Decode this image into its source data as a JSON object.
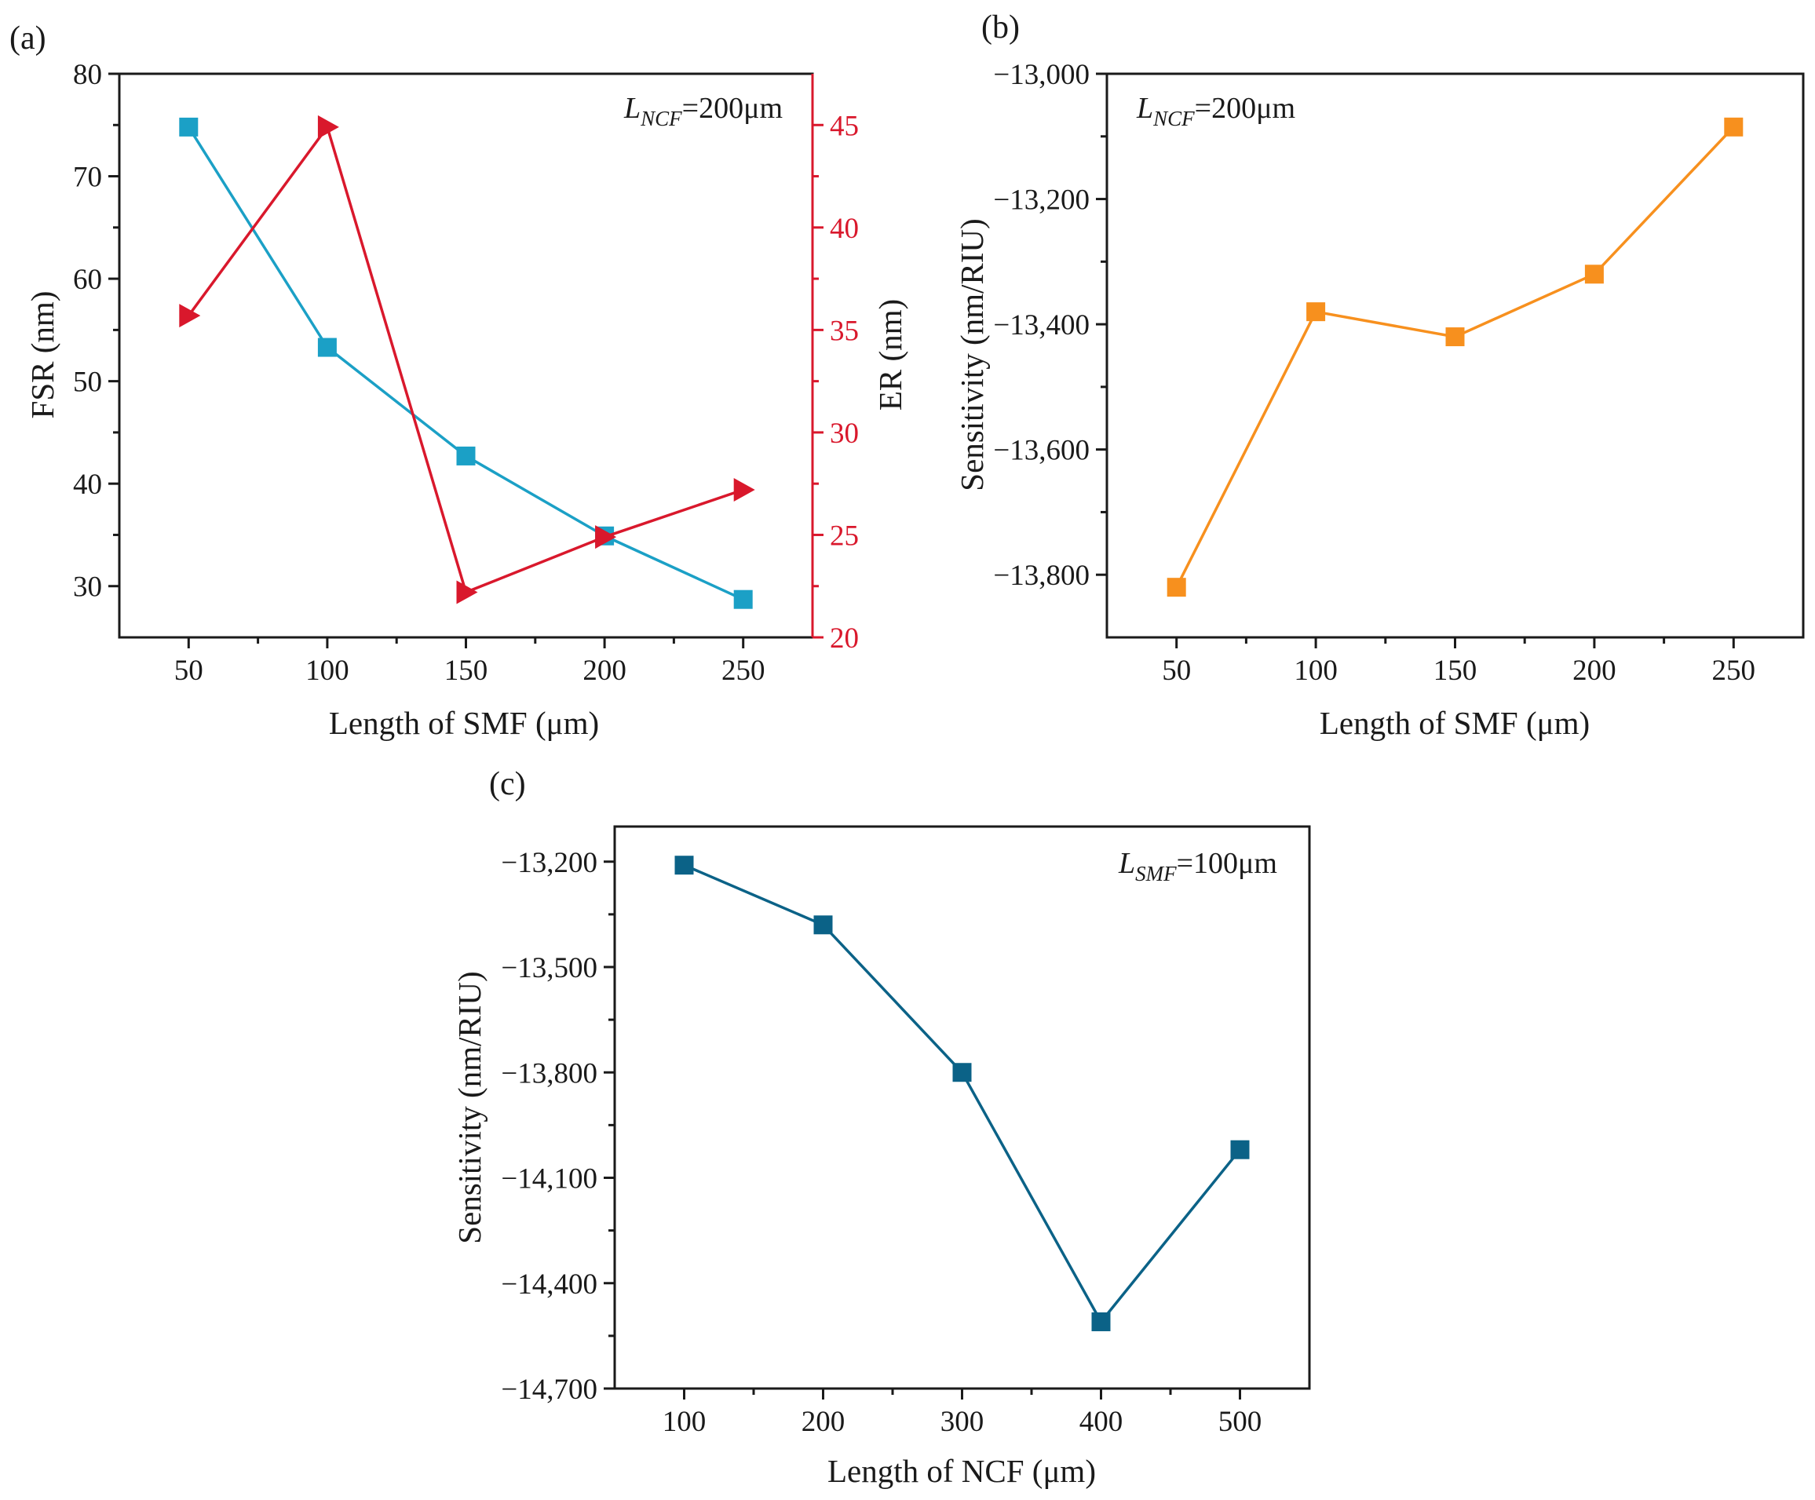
{
  "chart_data": [
    {
      "panel": "(a)",
      "type": "line",
      "xlabel": "Length of SMF (μm)",
      "ylabel": "FSR (nm)",
      "y2label": "ER (nm)",
      "xlim": [
        25,
        275
      ],
      "ylim": [
        25,
        80
      ],
      "y2lim": [
        20,
        47.5
      ],
      "xticks": [
        50,
        100,
        150,
        200,
        250
      ],
      "xticklabels": [
        "50",
        "100",
        "150",
        "200",
        "250"
      ],
      "yticks": [
        30,
        40,
        50,
        60,
        70,
        80
      ],
      "yticklabels": [
        "30",
        "40",
        "50",
        "60",
        "70",
        "80"
      ],
      "y2ticks": [
        20,
        25,
        30,
        35,
        40,
        45
      ],
      "y2ticklabels": [
        "20",
        "25",
        "30",
        "35",
        "40",
        "45"
      ],
      "annotation": {
        "prefix": "L",
        "sub": "NCF",
        "suffix": "=200μm"
      },
      "series": [
        {
          "axis": "left",
          "marker": "square",
          "color": "#1ba0c6",
          "x": [
            50,
            100,
            150,
            200,
            250
          ],
          "values": [
            74.8,
            53.3,
            42.7,
            34.9,
            28.7
          ]
        },
        {
          "axis": "right",
          "marker": "triangle-right",
          "color": "#d9182c",
          "x": [
            50,
            100,
            150,
            200,
            250
          ],
          "values": [
            35.7,
            44.9,
            22.2,
            24.9,
            27.2
          ]
        }
      ]
    },
    {
      "panel": "(b)",
      "type": "line",
      "xlabel": "Length of SMF (μm)",
      "ylabel": "Sensitivity (nm/RIU)",
      "xlim": [
        25,
        275
      ],
      "ylim": [
        -13900,
        -13000
      ],
      "xticks": [
        50,
        100,
        150,
        200,
        250
      ],
      "xticklabels": [
        "50",
        "100",
        "150",
        "200",
        "250"
      ],
      "yticks": [
        -13800,
        -13600,
        -13400,
        -13200,
        -13000
      ],
      "yticklabels": [
        "−13,800",
        "−13,600",
        "−13,400",
        "−13,200",
        "−13,000"
      ],
      "annotation": {
        "prefix": "L",
        "sub": "NCF",
        "suffix": "=200μm"
      },
      "series": [
        {
          "axis": "left",
          "marker": "square",
          "color": "#f7901e",
          "x": [
            50,
            100,
            150,
            200,
            250
          ],
          "values": [
            -13820,
            -13380,
            -13420,
            -13320,
            -13085
          ]
        }
      ]
    },
    {
      "panel": "(c)",
      "type": "line",
      "xlabel": "Length of NCF (μm)",
      "ylabel": "Sensitivity (nm/RIU)",
      "xlim": [
        50,
        550
      ],
      "ylim": [
        -14700,
        -13100
      ],
      "xticks": [
        100,
        200,
        300,
        400,
        500
      ],
      "xticklabels": [
        "100",
        "200",
        "300",
        "400",
        "500"
      ],
      "yticks": [
        -14700,
        -14400,
        -14100,
        -13800,
        -13500,
        -13200
      ],
      "yticklabels": [
        "−14,700",
        "−14,400",
        "−14,100",
        "−13,800",
        "−13,500",
        "−13,200"
      ],
      "annotation": {
        "prefix": "L",
        "sub": "SMF",
        "suffix": "=100μm"
      },
      "series": [
        {
          "axis": "left",
          "marker": "square",
          "color": "#0b6287",
          "x": [
            100,
            200,
            300,
            400,
            500
          ],
          "values": [
            -13210,
            -13380,
            -13800,
            -14510,
            -14020
          ]
        }
      ]
    }
  ]
}
